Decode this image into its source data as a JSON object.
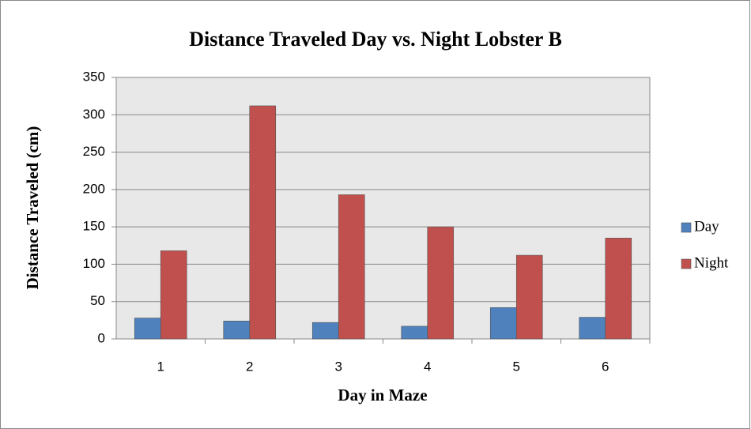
{
  "chart_data": {
    "type": "bar",
    "title": "Distance Traveled Day vs. Night Lobster B",
    "x_label": "Day in Maze",
    "y_label": "Distance Traveled (cm)",
    "categories": [
      "1",
      "2",
      "3",
      "4",
      "5",
      "6"
    ],
    "series": [
      {
        "name": "Day",
        "color": "#4f81bd",
        "values": [
          28,
          24,
          22,
          17,
          42,
          29
        ]
      },
      {
        "name": "Night",
        "color": "#c0504d",
        "values": [
          118,
          312,
          193,
          150,
          112,
          135
        ]
      }
    ],
    "ylim": [
      0,
      350
    ],
    "yticks": [
      0,
      50,
      100,
      150,
      200,
      250,
      300,
      350
    ],
    "grid": true,
    "legend": "right"
  }
}
